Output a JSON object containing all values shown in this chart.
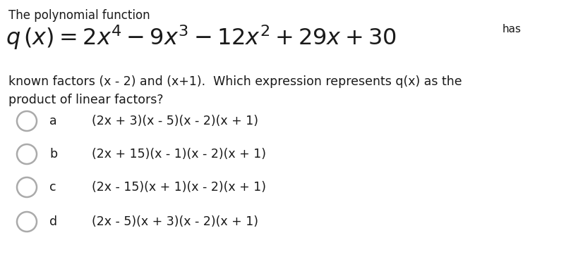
{
  "background_color": "#ffffff",
  "title_line1": "The polynomial function",
  "title_line2": "$q\\,(x) = 2x^4 - 9x^3 - 12x^2 + 29x + 30$",
  "has_text": "has",
  "body_text": "known factors (x - 2) and (x+1).  Which expression represents q(x) as the\nproduct of linear factors?",
  "options": [
    {
      "label": "a",
      "text": "(2x + 3)(x - 5)(x - 2)(x + 1)"
    },
    {
      "label": "b",
      "text": "(2x + 15)(x - 1)(x - 2)(x + 1)"
    },
    {
      "label": "c",
      "text": "(2x - 15)(x + 1)(x - 2)(x + 1)"
    },
    {
      "label": "d",
      "text": "(2x - 5)(x + 3)(x - 2)(x + 1)"
    }
  ],
  "text_color": "#1a1a1a",
  "circle_edge_color": "#aaaaaa",
  "title_fontsize": 12,
  "equation_fontsize": 23,
  "body_fontsize": 12.5,
  "option_fontsize": 12.5,
  "label_fontsize": 12.5,
  "has_fontsize": 11
}
